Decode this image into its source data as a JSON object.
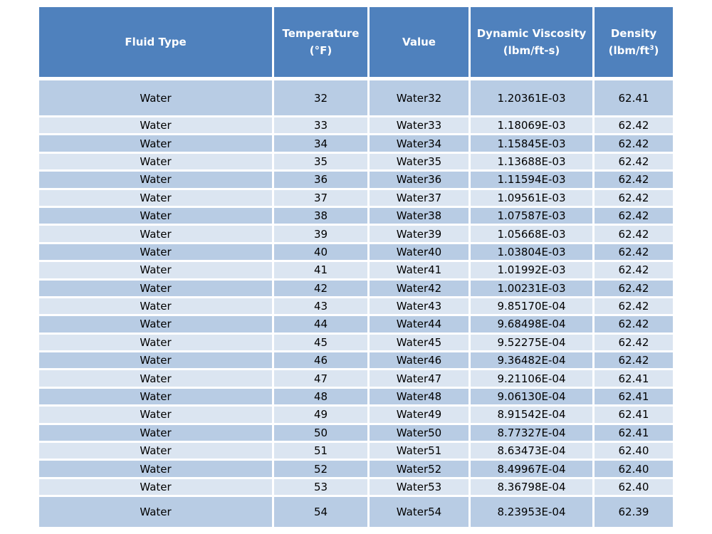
{
  "table": {
    "headers": {
      "fluid_type": "Fluid Type",
      "temperature_line1": "Temperature",
      "temperature_line2": "(°F)",
      "value": "Value",
      "viscosity_line1": "Dynamic Viscosity",
      "viscosity_line2": "(lbm/ft-s)",
      "density_line1": "Density",
      "density_line2_main": "(lbm/ft",
      "density_line2_sup": "3",
      "density_line2_close": ")"
    },
    "rows": [
      {
        "fluid": "Water",
        "temp": "32",
        "value": "Water32",
        "viscosity": "1.20361E-03",
        "density": "62.41"
      },
      {
        "fluid": "Water",
        "temp": "33",
        "value": "Water33",
        "viscosity": "1.18069E-03",
        "density": "62.42"
      },
      {
        "fluid": "Water",
        "temp": "34",
        "value": "Water34",
        "viscosity": "1.15845E-03",
        "density": "62.42"
      },
      {
        "fluid": "Water",
        "temp": "35",
        "value": "Water35",
        "viscosity": "1.13688E-03",
        "density": "62.42"
      },
      {
        "fluid": "Water",
        "temp": "36",
        "value": "Water36",
        "viscosity": "1.11594E-03",
        "density": "62.42"
      },
      {
        "fluid": "Water",
        "temp": "37",
        "value": "Water37",
        "viscosity": "1.09561E-03",
        "density": "62.42"
      },
      {
        "fluid": "Water",
        "temp": "38",
        "value": "Water38",
        "viscosity": "1.07587E-03",
        "density": "62.42"
      },
      {
        "fluid": "Water",
        "temp": "39",
        "value": "Water39",
        "viscosity": "1.05668E-03",
        "density": "62.42"
      },
      {
        "fluid": "Water",
        "temp": "40",
        "value": "Water40",
        "viscosity": "1.03804E-03",
        "density": "62.42"
      },
      {
        "fluid": "Water",
        "temp": "41",
        "value": "Water41",
        "viscosity": "1.01992E-03",
        "density": "62.42"
      },
      {
        "fluid": "Water",
        "temp": "42",
        "value": "Water42",
        "viscosity": "1.00231E-03",
        "density": "62.42"
      },
      {
        "fluid": "Water",
        "temp": "43",
        "value": "Water43",
        "viscosity": "9.85170E-04",
        "density": "62.42"
      },
      {
        "fluid": "Water",
        "temp": "44",
        "value": "Water44",
        "viscosity": "9.68498E-04",
        "density": "62.42"
      },
      {
        "fluid": "Water",
        "temp": "45",
        "value": "Water45",
        "viscosity": "9.52275E-04",
        "density": "62.42"
      },
      {
        "fluid": "Water",
        "temp": "46",
        "value": "Water46",
        "viscosity": "9.36482E-04",
        "density": "62.42"
      },
      {
        "fluid": "Water",
        "temp": "47",
        "value": "Water47",
        "viscosity": "9.21106E-04",
        "density": "62.41"
      },
      {
        "fluid": "Water",
        "temp": "48",
        "value": "Water48",
        "viscosity": "9.06130E-04",
        "density": "62.41"
      },
      {
        "fluid": "Water",
        "temp": "49",
        "value": "Water49",
        "viscosity": "8.91542E-04",
        "density": "62.41"
      },
      {
        "fluid": "Water",
        "temp": "50",
        "value": "Water50",
        "viscosity": "8.77327E-04",
        "density": "62.41"
      },
      {
        "fluid": "Water",
        "temp": "51",
        "value": "Water51",
        "viscosity": "8.63473E-04",
        "density": "62.40"
      },
      {
        "fluid": "Water",
        "temp": "52",
        "value": "Water52",
        "viscosity": "8.49967E-04",
        "density": "62.40"
      },
      {
        "fluid": "Water",
        "temp": "53",
        "value": "Water53",
        "viscosity": "8.36798E-04",
        "density": "62.40"
      },
      {
        "fluid": "Water",
        "temp": "54",
        "value": "Water54",
        "viscosity": "8.23953E-04",
        "density": "62.39"
      }
    ]
  },
  "colors": {
    "header_bg": "#4f81bd",
    "row_dark": "#b8cce4",
    "row_light": "#dbe5f1"
  }
}
